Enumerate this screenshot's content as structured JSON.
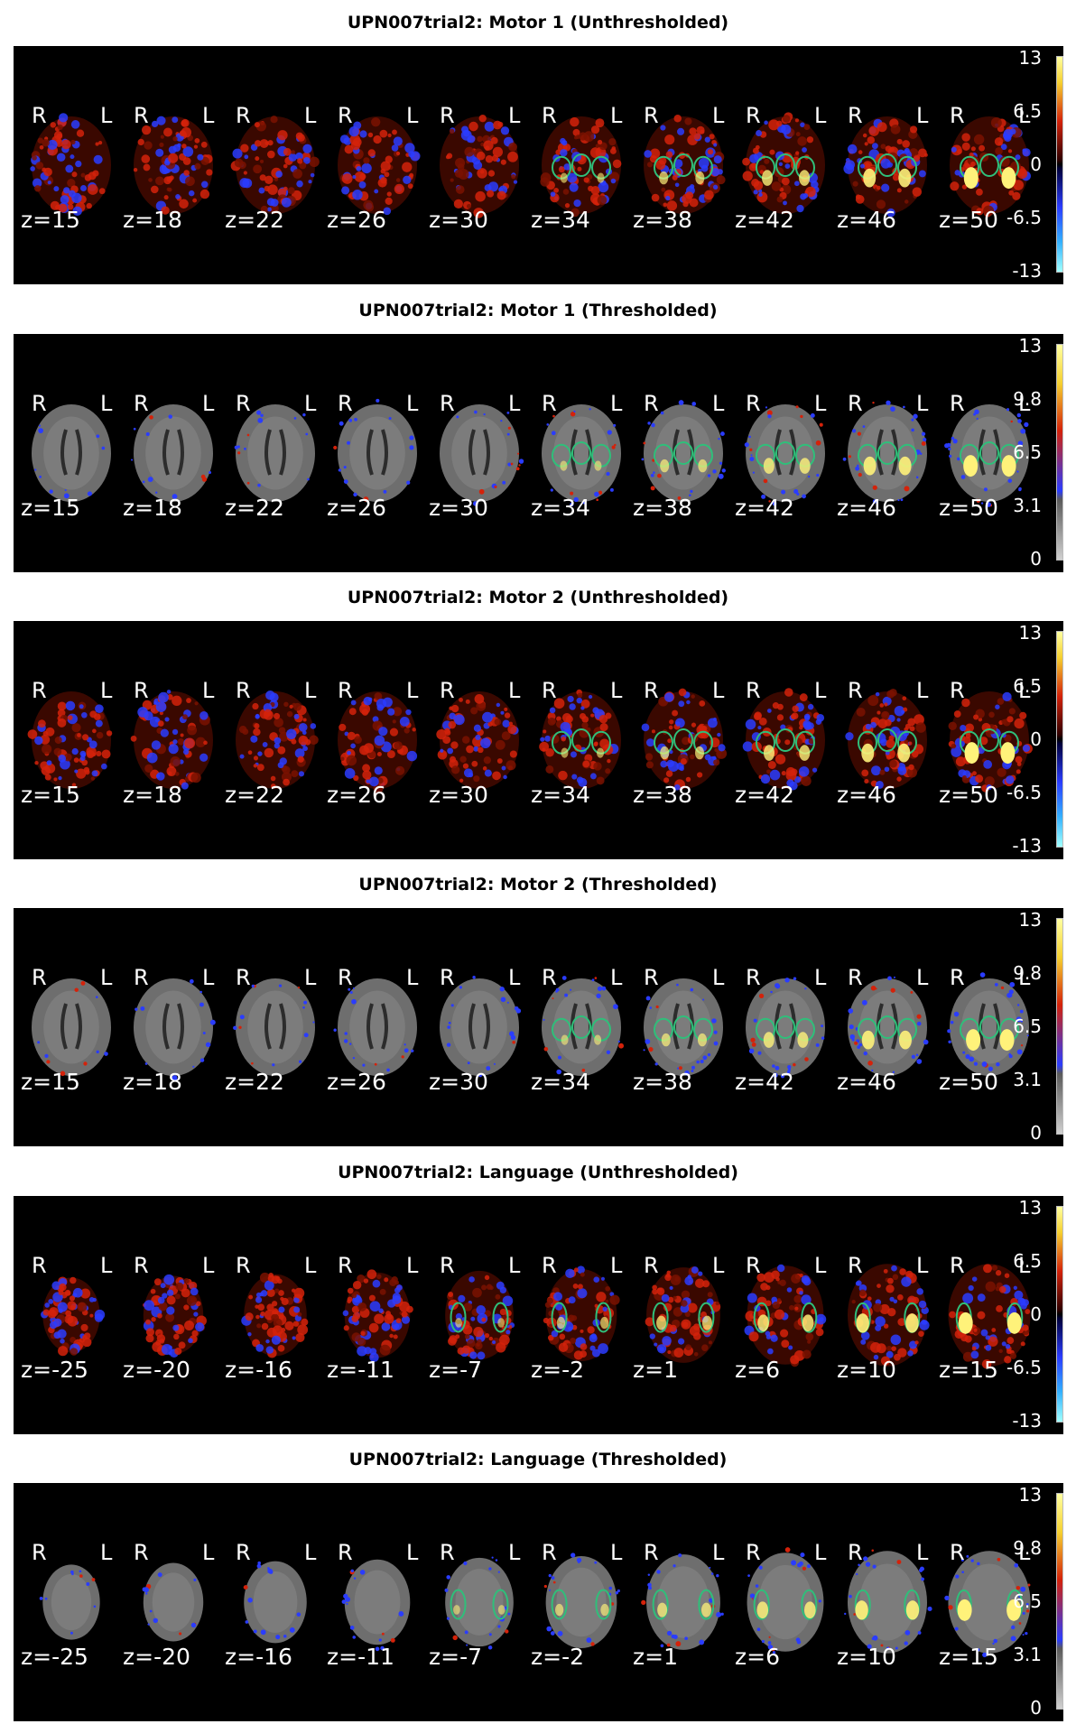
{
  "panels": [
    {
      "title": "UPN007trial2: Motor 1 (Unthresholded)",
      "mode": "unthresholded",
      "activation": "motor",
      "slices": [
        "z=15",
        "z=18",
        "z=22",
        "z=26",
        "z=30",
        "z=34",
        "z=38",
        "z=42",
        "z=46",
        "z=50"
      ],
      "orientation": {
        "right": "R",
        "left": "L"
      },
      "colorbar_ticks": [
        "13",
        "6.5",
        "0",
        "-6.5",
        "-13"
      ]
    },
    {
      "title": "UPN007trial2: Motor 1 (Thresholded)",
      "mode": "thresholded",
      "activation": "motor",
      "slices": [
        "z=15",
        "z=18",
        "z=22",
        "z=26",
        "z=30",
        "z=34",
        "z=38",
        "z=42",
        "z=46",
        "z=50"
      ],
      "orientation": {
        "right": "R",
        "left": "L"
      },
      "colorbar_ticks": [
        "13",
        "9.8",
        "6.5",
        "3.1",
        "0"
      ]
    },
    {
      "title": "UPN007trial2: Motor 2 (Unthresholded)",
      "mode": "unthresholded",
      "activation": "motor",
      "slices": [
        "z=15",
        "z=18",
        "z=22",
        "z=26",
        "z=30",
        "z=34",
        "z=38",
        "z=42",
        "z=46",
        "z=50"
      ],
      "orientation": {
        "right": "R",
        "left": "L"
      },
      "colorbar_ticks": [
        "13",
        "6.5",
        "0",
        "-6.5",
        "-13"
      ]
    },
    {
      "title": "UPN007trial2: Motor 2 (Thresholded)",
      "mode": "thresholded",
      "activation": "motor",
      "slices": [
        "z=15",
        "z=18",
        "z=22",
        "z=26",
        "z=30",
        "z=34",
        "z=38",
        "z=42",
        "z=46",
        "z=50"
      ],
      "orientation": {
        "right": "R",
        "left": "L"
      },
      "colorbar_ticks": [
        "13",
        "9.8",
        "6.5",
        "3.1",
        "0"
      ]
    },
    {
      "title": "UPN007trial2: Language (Unthresholded)",
      "mode": "unthresholded",
      "activation": "language",
      "slices": [
        "z=-25",
        "z=-20",
        "z=-16",
        "z=-11",
        "z=-7",
        "z=-2",
        "z=1",
        "z=6",
        "z=10",
        "z=15"
      ],
      "orientation": {
        "right": "R",
        "left": "L"
      },
      "colorbar_ticks": [
        "13",
        "6.5",
        "0",
        "-6.5",
        "-13"
      ]
    },
    {
      "title": "UPN007trial2: Language (Thresholded)",
      "mode": "thresholded",
      "activation": "language",
      "slices": [
        "z=-25",
        "z=-20",
        "z=-16",
        "z=-11",
        "z=-7",
        "z=-2",
        "z=1",
        "z=6",
        "z=10",
        "z=15"
      ],
      "orientation": {
        "right": "R",
        "left": "L"
      },
      "colorbar_ticks": [
        "13",
        "9.8",
        "6.5",
        "3.1",
        "0"
      ]
    }
  ],
  "colors": {
    "background": "#000000",
    "overlay_positive": "#d4220a",
    "overlay_negative": "#2a3cff",
    "overlay_peak": "#fff27a",
    "roi_outline": "#2fbf7a",
    "brain_gray": "#6e6e6e"
  }
}
